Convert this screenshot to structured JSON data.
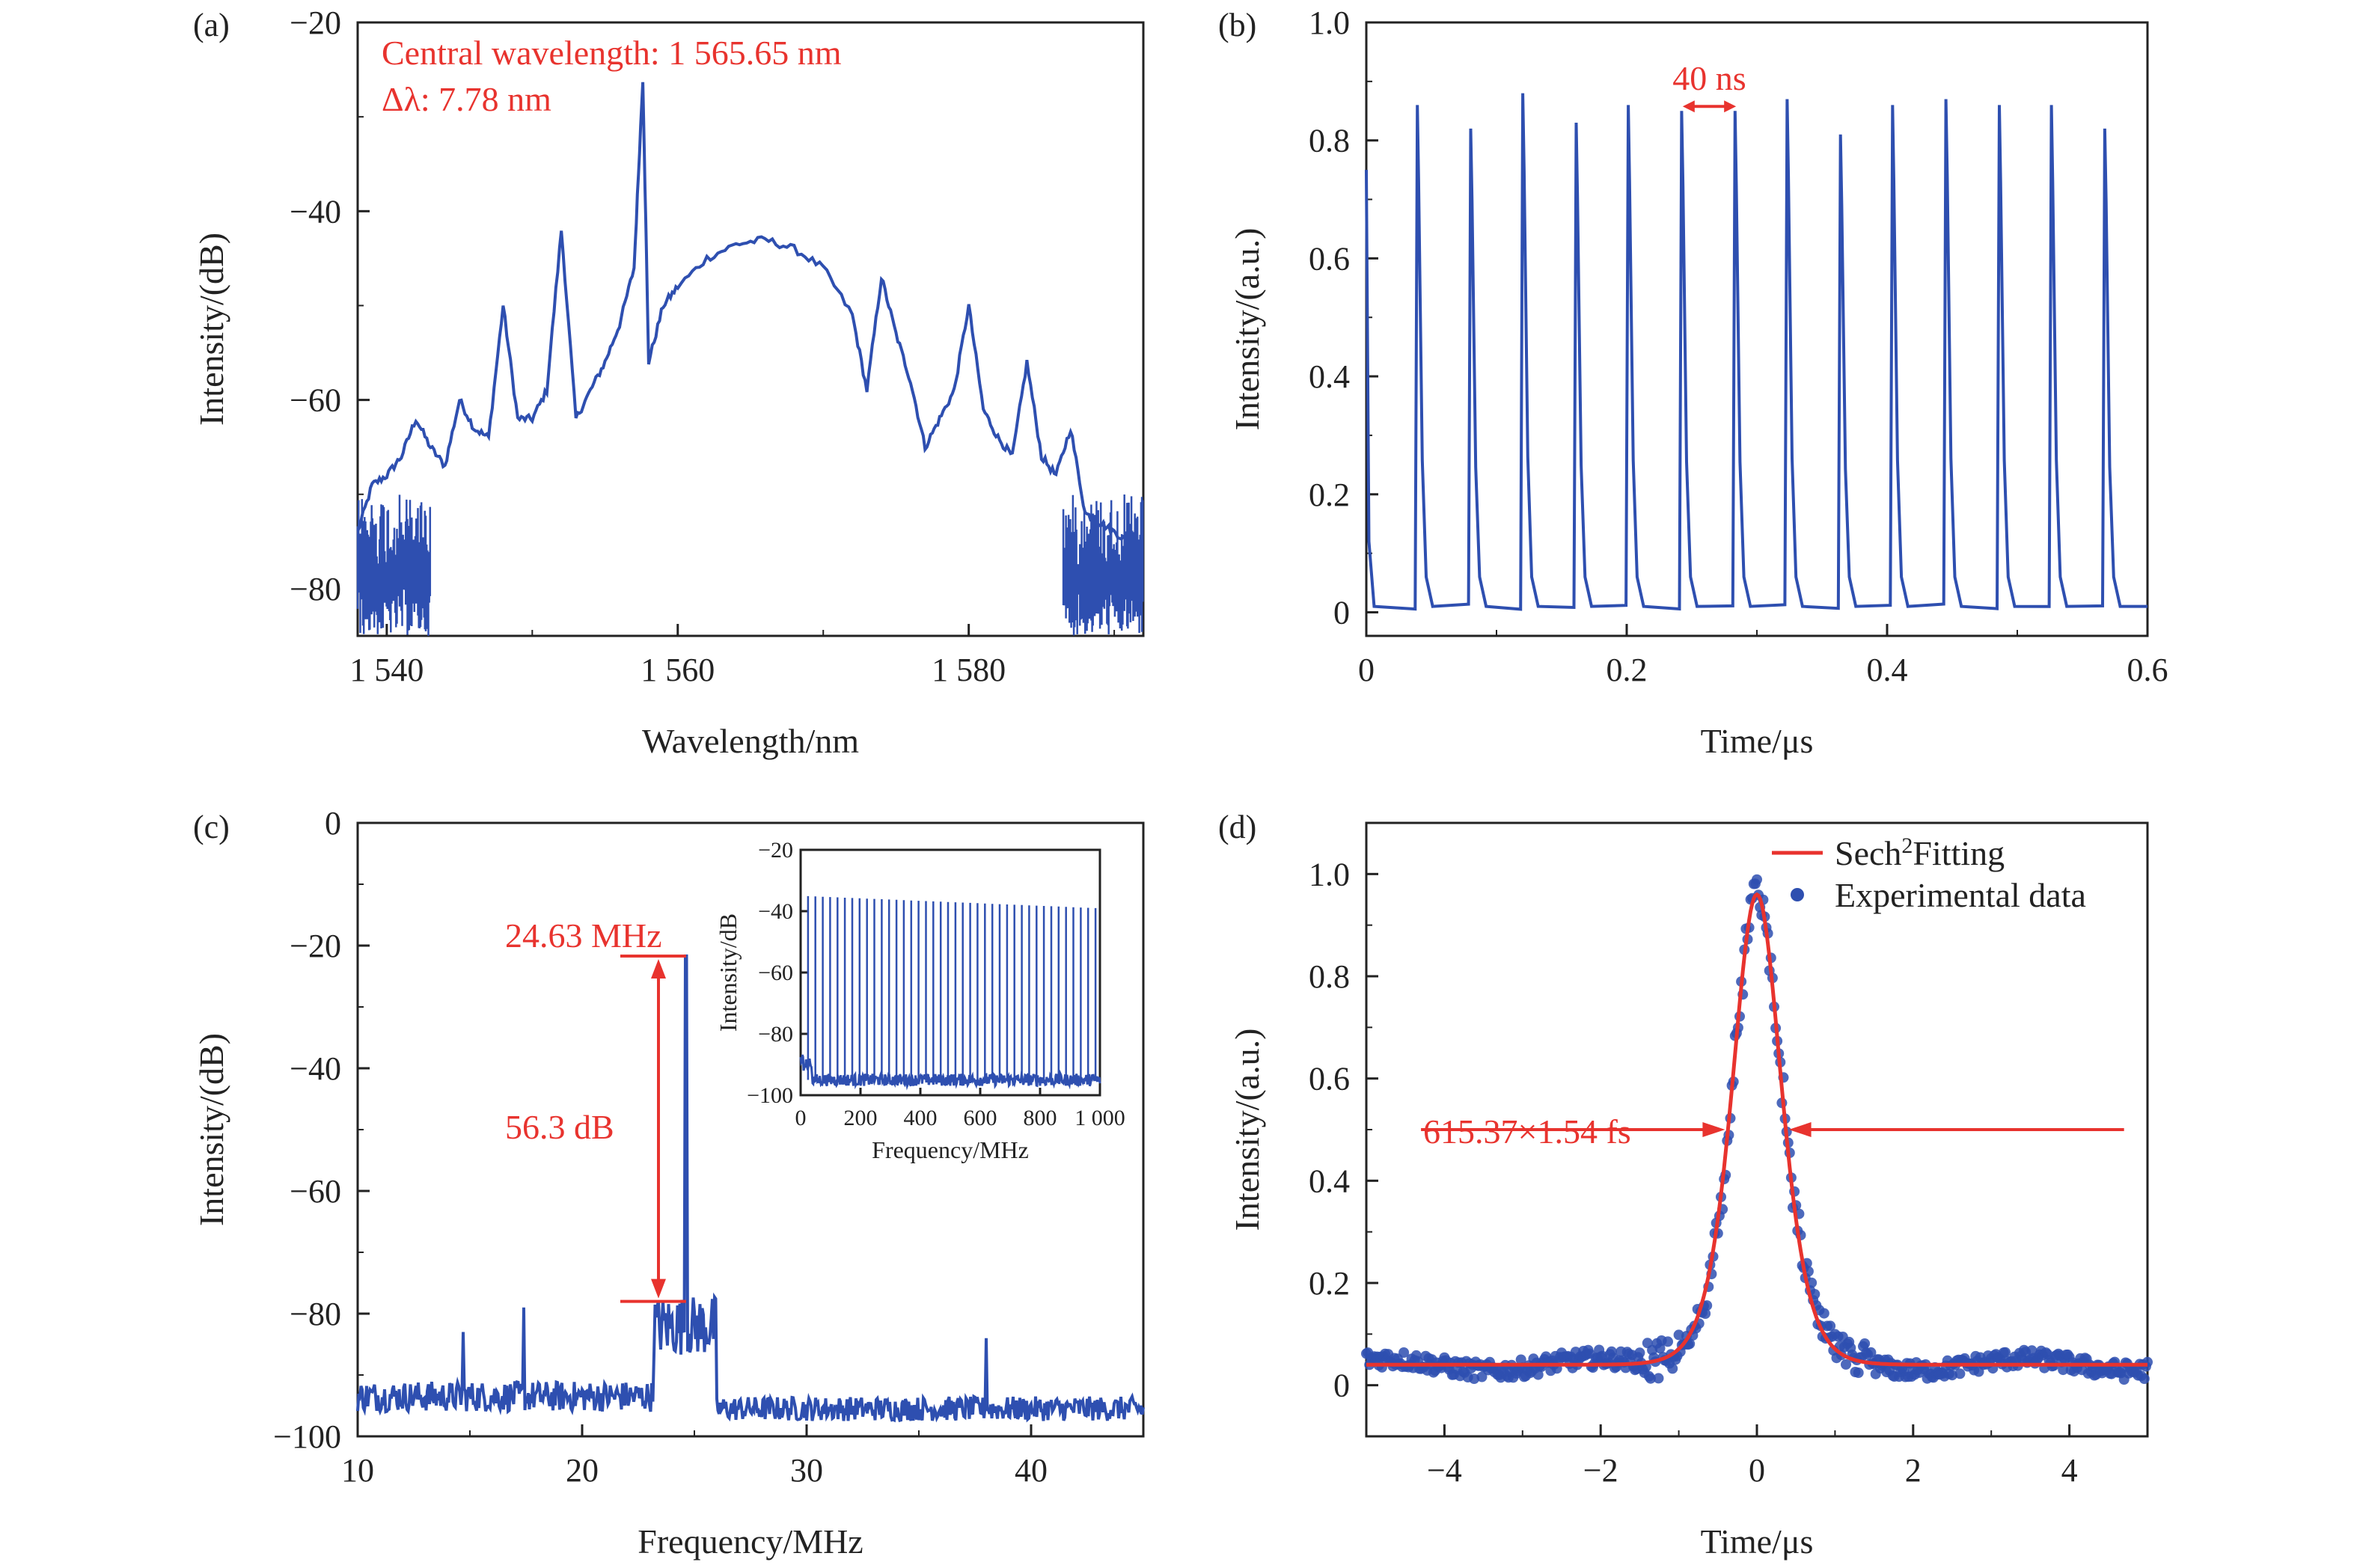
{
  "colors": {
    "data_blue": "#2e4fb0",
    "annotation_red": "#e8332e",
    "axis": "#222222"
  },
  "chart_data": [
    {
      "panel": "(a)",
      "type": "line",
      "xlabel": "Wavelength/nm",
      "ylabel": "Intensity/(dB)",
      "xlim": [
        1538,
        1592
      ],
      "ylim": [
        -85,
        -20
      ],
      "xticks": [
        "1 540",
        "1 560",
        "1 580"
      ],
      "xtick_values": [
        1540,
        1560,
        1580
      ],
      "yticks": [
        "−20",
        "−40",
        "−60",
        "−80"
      ],
      "ytick_values": [
        -20,
        -40,
        -60,
        -80
      ],
      "annotations": [
        "Central wavelength: 1 565.65 nm",
        "Δλ: 7.78 nm"
      ],
      "series": [
        {
          "x": [
            1538,
            1539,
            1540,
            1541,
            1542,
            1543,
            1544,
            1545,
            1546,
            1547,
            1548,
            1549,
            1550,
            1551,
            1552,
            1553,
            1554,
            1555,
            1556,
            1557,
            1557.6,
            1558,
            1559,
            1560,
            1562,
            1564,
            1566,
            1568,
            1570,
            1572,
            1573,
            1574,
            1575,
            1576,
            1577,
            1578,
            1579,
            1580,
            1581,
            1582,
            1583,
            1584,
            1585,
            1586,
            1587,
            1588,
            1589,
            1590,
            1591,
            1592
          ],
          "y": [
            -74,
            -69,
            -68,
            -66,
            -62,
            -65,
            -67,
            -60,
            -63,
            -64,
            -50,
            -62,
            -62,
            -59,
            -42,
            -62,
            -59,
            -56,
            -52,
            -46,
            -26,
            -56,
            -50,
            -48,
            -45,
            -43.5,
            -43,
            -44,
            -46,
            -51,
            -59,
            -47,
            -53,
            -58,
            -65,
            -62,
            -59,
            -50,
            -61,
            -64,
            -66,
            -56,
            -66,
            -68,
            -63,
            -72,
            -73,
            -74,
            -75,
            -76
          ]
        }
      ]
    },
    {
      "panel": "(b)",
      "type": "line",
      "xlabel": "Time/μs",
      "ylabel": "Intensity/(a.u.)",
      "xlim": [
        0,
        0.6
      ],
      "ylim": [
        -0.04,
        1.0
      ],
      "xticks": [
        "0",
        "0.2",
        "0.4",
        "0.6"
      ],
      "xtick_values": [
        0,
        0.2,
        0.4,
        0.6
      ],
      "yticks": [
        "0",
        "0.2",
        "0.4",
        "0.6",
        "0.8",
        "1.0"
      ],
      "ytick_values": [
        0,
        0.2,
        0.4,
        0.6,
        0.8,
        1.0
      ],
      "annotations": [
        "40 ns"
      ],
      "pulse_period": 0.0406,
      "pulse_times": [
        0.04,
        0.081,
        0.121,
        0.162,
        0.202,
        0.243,
        0.284,
        0.324,
        0.365,
        0.405,
        0.446,
        0.487,
        0.527,
        0.568
      ],
      "pulse_peaks": [
        0.86,
        0.82,
        0.88,
        0.83,
        0.86,
        0.85,
        0.85,
        0.87,
        0.81,
        0.86,
        0.87,
        0.86,
        0.86,
        0.82
      ]
    },
    {
      "panel": "(c)",
      "type": "line",
      "xlabel": "Frequency/MHz",
      "ylabel": "Intensity/(dB)",
      "xlim": [
        10,
        45
      ],
      "ylim": [
        -100,
        0
      ],
      "xticks": [
        "10",
        "20",
        "30",
        "40"
      ],
      "xtick_values": [
        10,
        20,
        30,
        40
      ],
      "yticks": [
        "0",
        "−20",
        "−40",
        "−60",
        "−80",
        "−100"
      ],
      "ytick_values": [
        0,
        -20,
        -40,
        -60,
        -80,
        -100
      ],
      "annotations": [
        "24.63 MHz",
        "56.3 dB"
      ],
      "peak": {
        "x": 24.63,
        "y": -21.7,
        "floor": -78
      },
      "spurs": [
        [
          14.7,
          -83
        ],
        [
          17.4,
          -79
        ],
        [
          38.0,
          -84
        ]
      ],
      "inset": {
        "xlabel": "Frequency/MHz",
        "ylabel": "Intensity/dB",
        "xlim": [
          0,
          1000
        ],
        "ylim": [
          -100,
          -20
        ],
        "xticks": [
          "0",
          "200",
          "400",
          "600",
          "800",
          "1 000"
        ],
        "xtick_values": [
          0,
          200,
          400,
          600,
          800,
          1000
        ],
        "yticks": [
          "−20",
          "−40",
          "−60",
          "−80",
          "−100"
        ],
        "ytick_values": [
          -20,
          -40,
          -60,
          -80,
          -100
        ],
        "harmonic_spacing": 24.63,
        "harmonic_level_start": -35,
        "harmonic_level_end": -39
      }
    },
    {
      "panel": "(d)",
      "type": "scatter",
      "xlabel": "Time/μs",
      "ylabel": "Intensity/(a.u.)",
      "xlim": [
        -5,
        5
      ],
      "ylim": [
        -0.1,
        1.1
      ],
      "xticks": [
        "−4",
        "−2",
        "0",
        "2",
        "4"
      ],
      "xtick_values": [
        -4,
        -2,
        0,
        2,
        4
      ],
      "yticks": [
        "0",
        "0.2",
        "0.4",
        "0.6",
        "0.8",
        "1.0"
      ],
      "ytick_values": [
        0,
        0.2,
        0.4,
        0.6,
        0.8,
        1.0
      ],
      "legend": [
        "Sech",
        "2",
        "Fitting",
        "Experimental data"
      ],
      "legend_placement": "top-right",
      "annotations": [
        "615.37×1.54 fs"
      ],
      "fit": {
        "peak": 0.96,
        "baseline": 0.04,
        "width": 0.42
      }
    }
  ]
}
